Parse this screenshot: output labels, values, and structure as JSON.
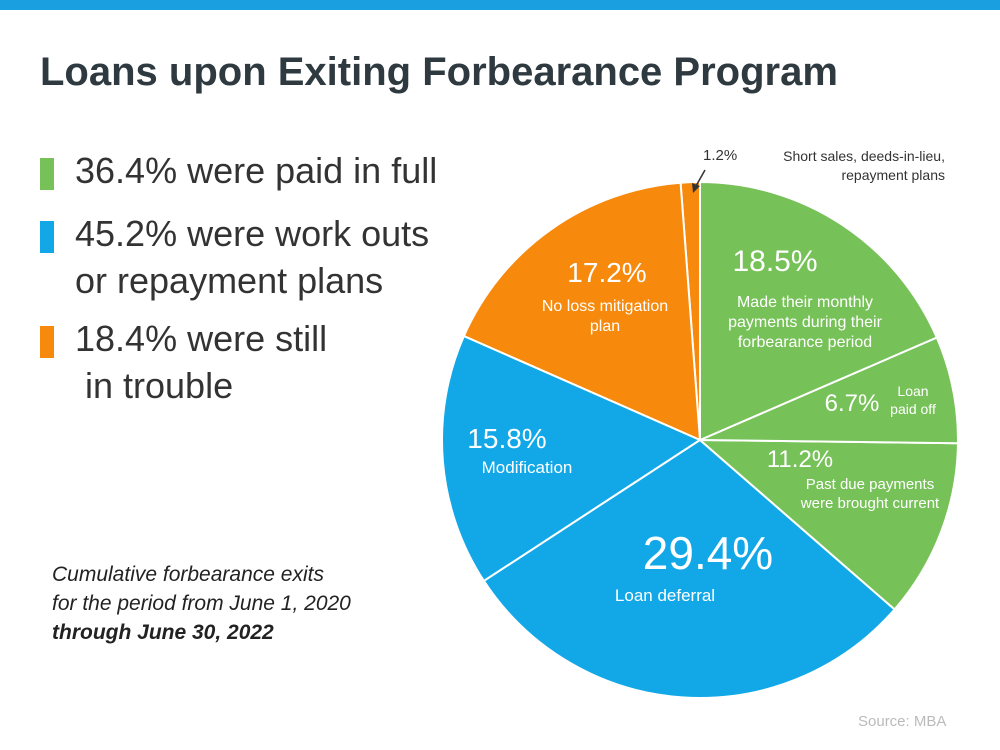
{
  "chart_data": {
    "type": "pie",
    "title": "Loans upon Exiting Forbearance Program",
    "categories": [
      "Made their monthly payments during their forbearance period",
      "Loan paid off",
      "Past due payments were brought current",
      "Loan deferral",
      "Modification",
      "No loss mitigation plan",
      "Short sales, deeds-in-lieu, repayment plans"
    ],
    "values": [
      18.5,
      6.7,
      11.2,
      29.4,
      15.8,
      17.2,
      1.2
    ],
    "value_labels": [
      "18.5%",
      "6.7%",
      "11.2%",
      "29.4%",
      "15.8%",
      "17.2%",
      "1.2%"
    ],
    "colors": [
      "#77c159",
      "#77c159",
      "#77c159",
      "#12a8e8",
      "#12a8e8",
      "#f7890c",
      "#f7890c"
    ],
    "legend": [
      {
        "lines": [
          "36.4% were paid in full"
        ],
        "color": "#77c159"
      },
      {
        "lines": [
          "45.2% were work outs",
          "or repayment plans"
        ],
        "color": "#12a8e8"
      },
      {
        "lines": [
          "18.4% were still",
          "in trouble"
        ],
        "color": "#f7890c"
      }
    ],
    "footnote": [
      "Cumulative forbearance exits",
      "for the period from June 1, 2020",
      "through June 30, 2022"
    ],
    "source": "Source: MBA"
  }
}
